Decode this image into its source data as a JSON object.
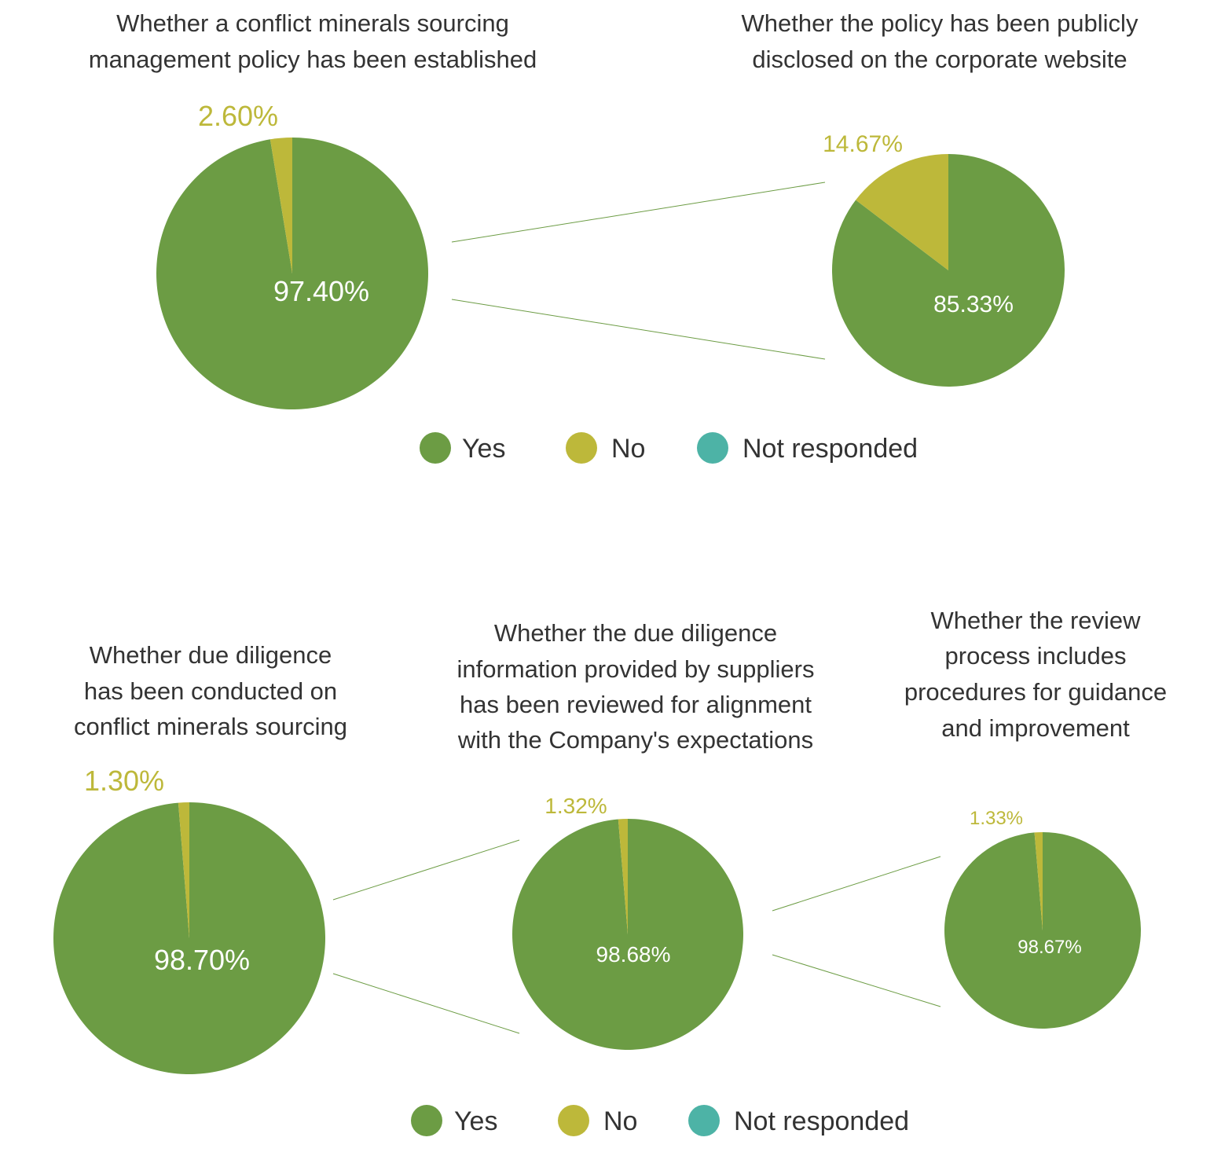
{
  "colors": {
    "Yes": "#6c9c44",
    "No": "#bdb83a",
    "Not responded": "#4db3a6",
    "text": "#333333",
    "connector": "#6c9c44"
  },
  "legend_top": [
    "Yes",
    "No",
    "Not responded"
  ],
  "legend_bottom": [
    "Yes",
    "No",
    "Not responded"
  ],
  "chart_data": [
    {
      "type": "pie",
      "title": [
        "Whether a conflict minerals sourcing",
        "management policy has been established"
      ],
      "categories": [
        "Yes",
        "No",
        "Not responded"
      ],
      "values": [
        97.4,
        2.6,
        0
      ],
      "labels": [
        "97.40%",
        "2.60%"
      ]
    },
    {
      "type": "pie",
      "title": [
        "Whether the policy has been publicly",
        "disclosed on the corporate website"
      ],
      "categories": [
        "Yes",
        "No",
        "Not responded"
      ],
      "values": [
        85.33,
        14.67,
        0
      ],
      "labels": [
        "85.33%",
        "14.67%"
      ]
    },
    {
      "type": "pie",
      "title": [
        "Whether due diligence",
        "has been conducted on",
        "conflict minerals sourcing"
      ],
      "categories": [
        "Yes",
        "No",
        "Not responded"
      ],
      "values": [
        98.7,
        1.3,
        0
      ],
      "labels": [
        "98.70%",
        "1.30%"
      ]
    },
    {
      "type": "pie",
      "title": [
        "Whether the due diligence",
        "information provided by suppliers",
        "has been reviewed for alignment",
        "with the Company's expectations"
      ],
      "categories": [
        "Yes",
        "No",
        "Not responded"
      ],
      "values": [
        98.68,
        1.32,
        0
      ],
      "labels": [
        "98.68%",
        "1.32%"
      ]
    },
    {
      "type": "pie",
      "title": [
        "Whether the review",
        "process includes",
        "procedures for guidance",
        "and improvement"
      ],
      "categories": [
        "Yes",
        "No",
        "Not responded"
      ],
      "values": [
        98.67,
        1.33,
        0
      ],
      "labels": [
        "98.67%",
        "1.33%"
      ]
    }
  ]
}
